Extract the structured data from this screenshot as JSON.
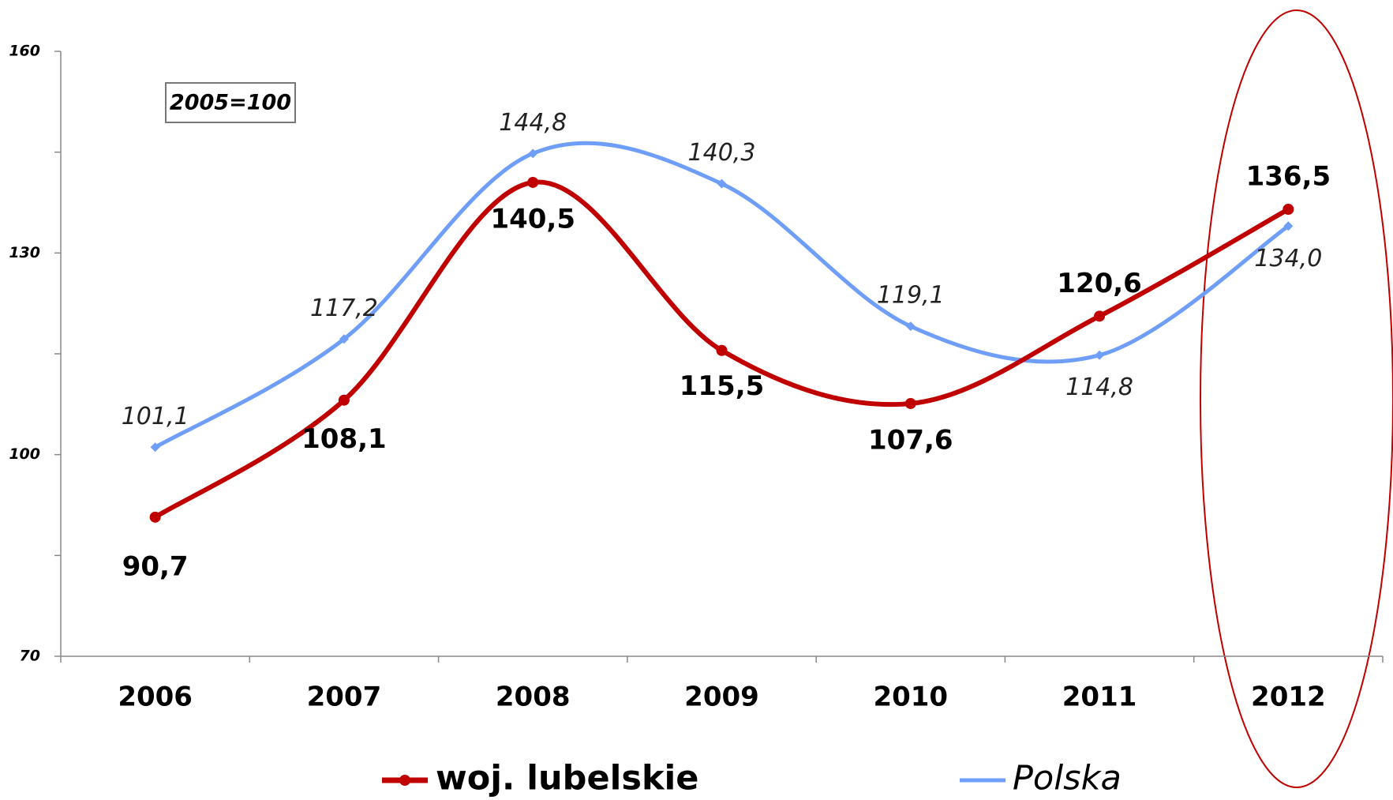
{
  "chart_data": {
    "type": "line",
    "annotation": "2005=100",
    "categories": [
      "2006",
      "2007",
      "2008",
      "2009",
      "2010",
      "2011",
      "2012"
    ],
    "series": [
      {
        "name": "woj. lubelskie",
        "color": "#c00000",
        "values": [
          90.7,
          108.1,
          140.5,
          115.5,
          107.6,
          120.6,
          136.5
        ],
        "value_labels": [
          "90,7",
          "108,1",
          "140,5",
          "115,5",
          "107,6",
          "120,6",
          "136,5"
        ]
      },
      {
        "name": "Polska",
        "color": "#6f9ef8",
        "values": [
          101.1,
          117.2,
          144.8,
          140.3,
          119.1,
          114.8,
          134.0
        ],
        "value_labels": [
          "101,1",
          "117,2",
          "144,8",
          "140,3",
          "119,1",
          "114,8",
          "134,0"
        ]
      }
    ],
    "ylim": [
      70,
      160
    ],
    "yticks": [
      70,
      100,
      130,
      160
    ],
    "yminorticks": [
      85,
      115,
      145
    ],
    "grid": false,
    "legend": "bottom"
  }
}
